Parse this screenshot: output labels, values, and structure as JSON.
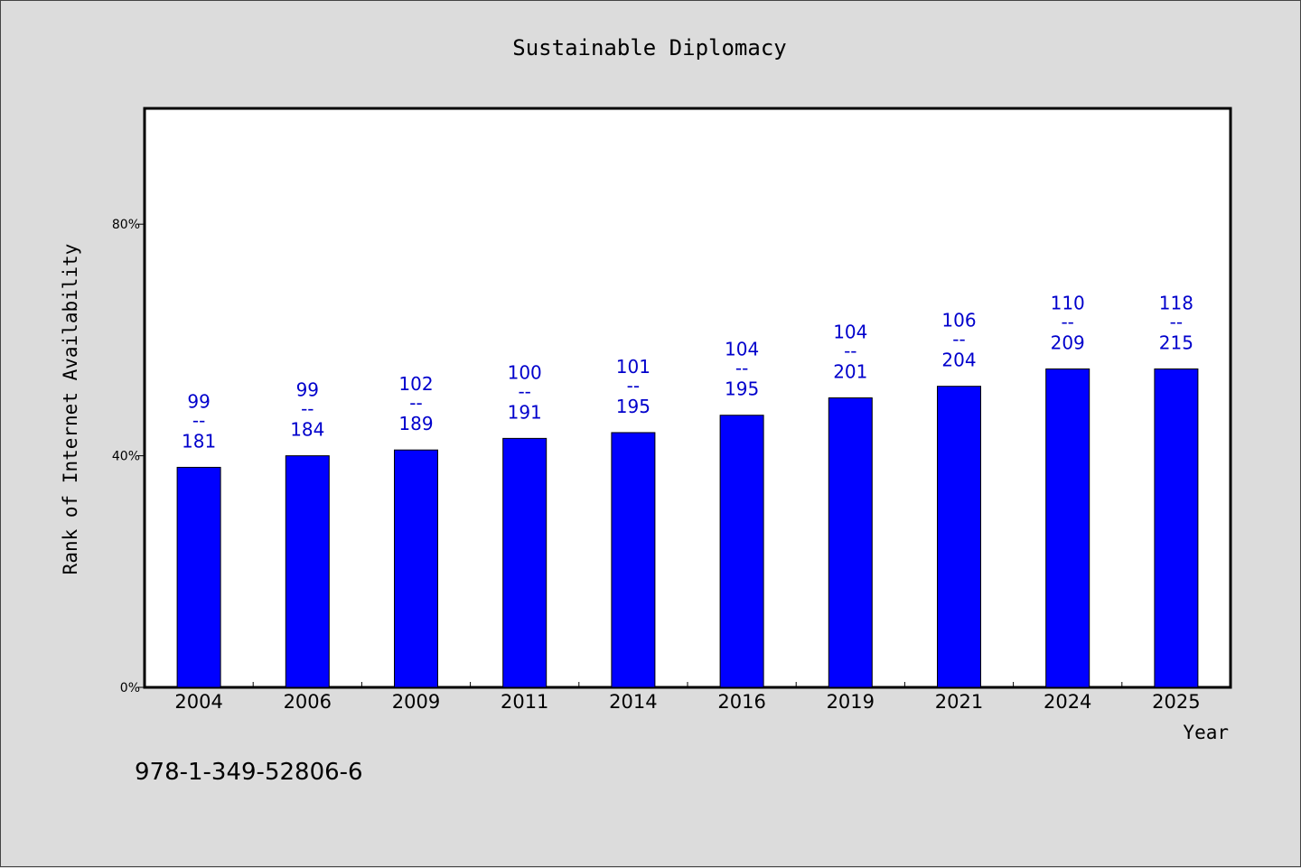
{
  "chart_data": {
    "type": "bar",
    "title": "Sustainable Diplomacy",
    "xlabel": "Year",
    "ylabel": "Rank of Internet Availability",
    "categories": [
      "2004",
      "2006",
      "2009",
      "2011",
      "2014",
      "2016",
      "2019",
      "2021",
      "2024",
      "2025"
    ],
    "values": [
      0.38,
      0.4,
      0.41,
      0.43,
      0.44,
      0.47,
      0.5,
      0.52,
      0.55,
      0.55
    ],
    "labels_top": [
      "99",
      "99",
      "102",
      "100",
      "101",
      "104",
      "104",
      "106",
      "110",
      "118"
    ],
    "labels_bottom": [
      "181",
      "184",
      "189",
      "191",
      "195",
      "195",
      "201",
      "204",
      "209",
      "215"
    ],
    "label_separator": "--",
    "ylim": [
      0,
      1.0
    ],
    "yticks": [
      0,
      0.4,
      0.8
    ],
    "ytick_labels": [
      "0%",
      "40%",
      "80%"
    ],
    "grid": false,
    "bar_color": "#0000ff",
    "label_color": "#0000cc"
  },
  "footnote": "978-1-349-52806-6"
}
